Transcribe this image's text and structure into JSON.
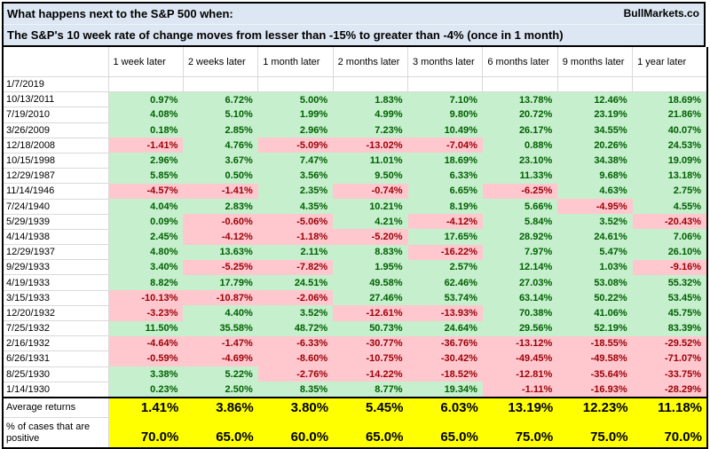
{
  "header": {
    "line1": "What happens next to the S&P 500 when:",
    "line2": "The S&P's 10 week rate of change moves from lesser than -15% to greater than -4% (once in 1 month)",
    "brand": "BullMarkets.co"
  },
  "table": {
    "columns": [
      "1 week later",
      "2 weeks later",
      "1 month later",
      "2 months later",
      "3 months later",
      "6 months later",
      "9 months later",
      "1 year later"
    ],
    "rows": [
      {
        "date": "1/7/2019",
        "values": [
          "",
          "",
          "",
          "",
          "",
          "",
          "",
          ""
        ]
      },
      {
        "date": "10/13/2011",
        "values": [
          "0.97%",
          "6.72%",
          "5.00%",
          "1.83%",
          "7.10%",
          "13.78%",
          "12.46%",
          "18.69%"
        ]
      },
      {
        "date": "7/19/2010",
        "values": [
          "4.08%",
          "5.10%",
          "1.99%",
          "4.99%",
          "9.80%",
          "20.72%",
          "23.19%",
          "21.86%"
        ]
      },
      {
        "date": "3/26/2009",
        "values": [
          "0.18%",
          "2.85%",
          "2.96%",
          "7.23%",
          "10.49%",
          "26.17%",
          "34.55%",
          "40.07%"
        ]
      },
      {
        "date": "12/18/2008",
        "values": [
          "-1.41%",
          "4.76%",
          "-5.09%",
          "-13.02%",
          "-7.04%",
          "0.88%",
          "20.26%",
          "24.53%"
        ]
      },
      {
        "date": "10/15/1998",
        "values": [
          "2.96%",
          "3.67%",
          "7.47%",
          "11.01%",
          "18.69%",
          "23.10%",
          "34.38%",
          "19.09%"
        ]
      },
      {
        "date": "12/29/1987",
        "values": [
          "5.85%",
          "0.50%",
          "3.56%",
          "9.50%",
          "6.33%",
          "11.33%",
          "9.68%",
          "13.18%"
        ]
      },
      {
        "date": "11/14/1946",
        "values": [
          "-4.57%",
          "-1.41%",
          "2.35%",
          "-0.74%",
          "6.65%",
          "-6.25%",
          "4.63%",
          "2.75%"
        ]
      },
      {
        "date": "7/24/1940",
        "values": [
          "4.04%",
          "2.83%",
          "4.35%",
          "10.21%",
          "8.19%",
          "5.66%",
          "-4.95%",
          "4.55%"
        ]
      },
      {
        "date": "5/29/1939",
        "values": [
          "0.09%",
          "-0.60%",
          "-5.06%",
          "4.21%",
          "-4.12%",
          "5.84%",
          "3.52%",
          "-20.43%"
        ]
      },
      {
        "date": "4/14/1938",
        "values": [
          "2.45%",
          "-4.12%",
          "-1.18%",
          "-5.20%",
          "17.65%",
          "28.92%",
          "24.61%",
          "7.06%"
        ]
      },
      {
        "date": "12/29/1937",
        "values": [
          "4.80%",
          "13.63%",
          "2.11%",
          "8.83%",
          "-16.22%",
          "7.97%",
          "5.47%",
          "26.10%"
        ]
      },
      {
        "date": "9/29/1933",
        "values": [
          "3.40%",
          "-5.25%",
          "-7.82%",
          "1.95%",
          "2.57%",
          "12.14%",
          "1.03%",
          "-9.16%"
        ]
      },
      {
        "date": "4/19/1933",
        "values": [
          "8.82%",
          "17.79%",
          "24.51%",
          "49.58%",
          "62.46%",
          "27.03%",
          "53.08%",
          "55.32%"
        ]
      },
      {
        "date": "3/15/1933",
        "values": [
          "-10.13%",
          "-10.87%",
          "-2.06%",
          "27.46%",
          "53.74%",
          "63.14%",
          "50.22%",
          "53.45%"
        ]
      },
      {
        "date": "12/20/1932",
        "values": [
          "-3.23%",
          "4.40%",
          "3.52%",
          "-12.61%",
          "-13.93%",
          "70.38%",
          "41.06%",
          "45.75%"
        ]
      },
      {
        "date": "7/25/1932",
        "values": [
          "11.50%",
          "35.58%",
          "48.72%",
          "50.73%",
          "24.64%",
          "29.56%",
          "52.19%",
          "83.39%"
        ]
      },
      {
        "date": "2/16/1932",
        "values": [
          "-4.64%",
          "-1.47%",
          "-6.33%",
          "-30.77%",
          "-36.76%",
          "-13.12%",
          "-18.55%",
          "-29.52%"
        ]
      },
      {
        "date": "6/26/1931",
        "values": [
          "-0.59%",
          "-4.69%",
          "-8.60%",
          "-10.75%",
          "-30.42%",
          "-49.45%",
          "-49.58%",
          "-71.07%"
        ]
      },
      {
        "date": "8/25/1930",
        "values": [
          "3.38%",
          "5.22%",
          "-2.76%",
          "-14.22%",
          "-18.52%",
          "-12.81%",
          "-35.64%",
          "-33.75%"
        ]
      },
      {
        "date": "1/14/1930",
        "values": [
          "0.23%",
          "2.50%",
          "8.35%",
          "8.77%",
          "19.34%",
          "-1.11%",
          "-16.93%",
          "-28.29%"
        ]
      }
    ]
  },
  "summary": {
    "average_label": "Average returns",
    "average_values": [
      "1.41%",
      "3.86%",
      "3.80%",
      "5.45%",
      "6.03%",
      "13.19%",
      "12.23%",
      "11.18%"
    ],
    "positive_label": "% of cases that are positive",
    "positive_values": [
      "70.0%",
      "65.0%",
      "60.0%",
      "65.0%",
      "65.0%",
      "75.0%",
      "75.0%",
      "70.0%"
    ]
  },
  "colors": {
    "positive_bg": "#C6EFCE",
    "positive_text": "#006100",
    "negative_bg": "#FFC7CE",
    "negative_text": "#9C0006",
    "summary_bg": "#FFFF00",
    "title_bg": "#DCE7F3"
  }
}
